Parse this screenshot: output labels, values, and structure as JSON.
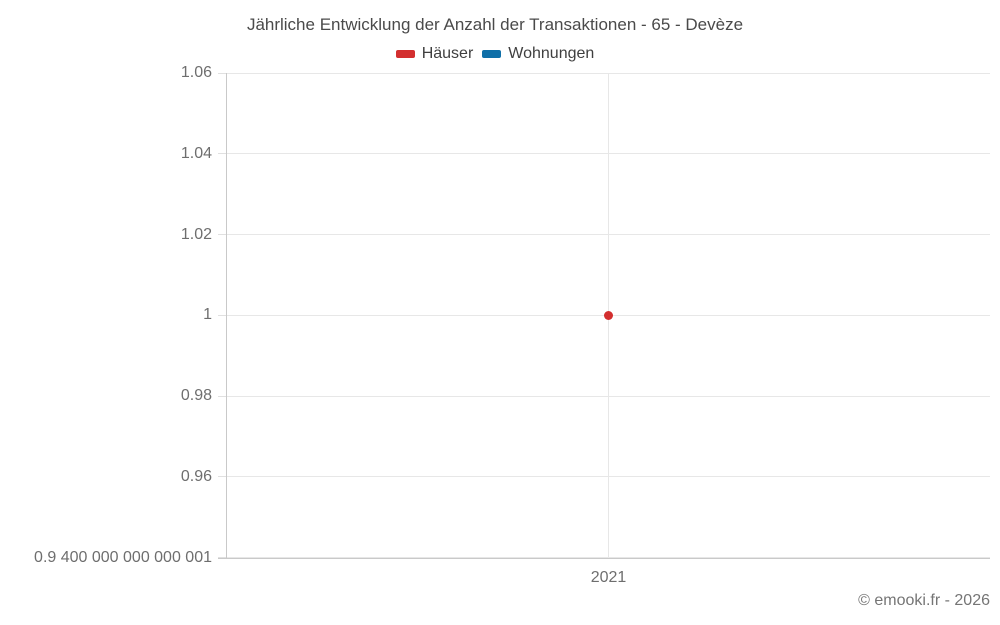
{
  "footer": {
    "copyright": "© emooki.fr - 2026"
  },
  "chart_data": {
    "type": "scatter",
    "title": "Jährliche Entwicklung der Anzahl der Transaktionen - 65 - Devèze",
    "categories": [
      "2021"
    ],
    "series": [
      {
        "name": "Häuser",
        "color": "#d32f2f",
        "values": [
          1
        ]
      },
      {
        "name": "Wohnungen",
        "color": "#0f6fa8",
        "values": [
          null
        ]
      }
    ],
    "ylim": [
      0.9400000000000001,
      1.06
    ],
    "y_ticks": [
      {
        "value": 1.06,
        "label": "1.06"
      },
      {
        "value": 1.04,
        "label": "1.04"
      },
      {
        "value": 1.02,
        "label": "1.02"
      },
      {
        "value": 1,
        "label": "1"
      },
      {
        "value": 0.98,
        "label": "0.98"
      },
      {
        "value": 0.96,
        "label": "0.96"
      },
      {
        "value": 0.9400000000000001,
        "label": "0.9 400 000 000 000 001"
      }
    ],
    "grid": true,
    "legend_position": "top",
    "background": "#ffffff"
  }
}
